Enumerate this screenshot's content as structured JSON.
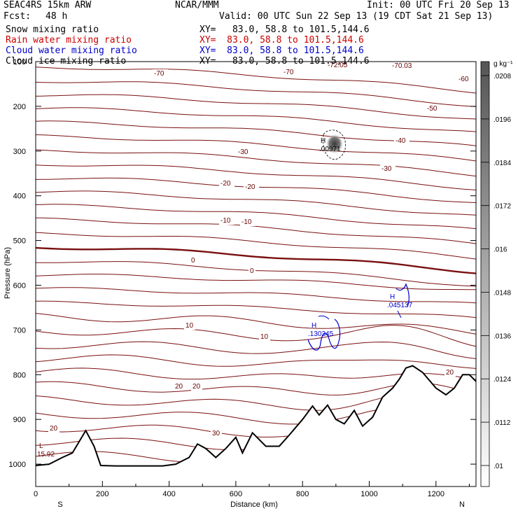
{
  "header": {
    "model": "SEAC4RS 15km ARW",
    "center": "NCAR/MMM",
    "init": "Init: 00 UTC Fri 20 Sep 13",
    "fcst_label": "Fcst:",
    "fcst_value": "48 h",
    "valid": "Valid: 00 UTC Sun 22 Sep 13 (19 CDT Sat 21 Sep 13)"
  },
  "fields": [
    {
      "name": "Snow mixing ratio",
      "xy": "XY=   83.0, 58.8 to 101.5,144.6",
      "color": "#000000"
    },
    {
      "name": "Rain water mixing ratio",
      "xy": "XY=  83.0, 58.8 to 101.5,144.6",
      "color": "#cc0000"
    },
    {
      "name": "Cloud water mixing ratio",
      "xy": "XY=  83.0, 58.8 to 101.5,144.6",
      "color": "#0000cc"
    },
    {
      "name": "Cloud ice mixing ratio",
      "xy": "XY=   83.0, 58.8 to 101.5,144.6",
      "color": "#000000"
    }
  ],
  "colorbar": {
    "units": "g kg⁻¹",
    "labels": [
      ".0208",
      ".0196",
      ".0184",
      ".0172",
      ".016",
      ".0148",
      ".0136",
      ".0124",
      ".0112",
      ".01"
    ]
  },
  "chart_data": {
    "type": "contour cross-section",
    "xlabel": "Distance (km)",
    "ylabel": "Pressure (hPa)",
    "x_ticks": [
      0,
      200,
      400,
      600,
      800,
      1000,
      1200
    ],
    "y_ticks": [
      200,
      300,
      400,
      500,
      600,
      700,
      800,
      900,
      1000
    ],
    "y_top_label": "100",
    "xlim": [
      0,
      1320
    ],
    "ylim": [
      1050,
      100
    ],
    "x_endpoints": {
      "left": "S",
      "right": "N"
    },
    "temperature_contour_labels": [
      "-70",
      "-70",
      "-72.05",
      "-70.03",
      "-60",
      "-50",
      "-40",
      "-30",
      "-30",
      "-20",
      "-20",
      "-10",
      "-10",
      "0",
      "0",
      "10",
      "10",
      "20",
      "20",
      "20",
      "20",
      "30"
    ],
    "extrema": [
      {
        "type": "H",
        "value": ".00971",
        "field": "Snow mixing ratio",
        "x_km": 900,
        "p_hPa": 300
      },
      {
        "type": "H",
        "value": ".130345",
        "field": "Cloud water mixing ratio",
        "x_km": 870,
        "p_hPa": 735
      },
      {
        "type": "H",
        "value": ".045137",
        "field": "Cloud water mixing ratio",
        "x_km": 1095,
        "p_hPa": 630
      },
      {
        "type": "L",
        "value": "15.92",
        "field": "temperature",
        "x_km": 25,
        "p_hPa": 1000
      }
    ],
    "terrain_surface": [
      {
        "x": 0,
        "p": 1003
      },
      {
        "x": 40,
        "p": 1000
      },
      {
        "x": 80,
        "p": 985
      },
      {
        "x": 110,
        "p": 975
      },
      {
        "x": 150,
        "p": 925
      },
      {
        "x": 175,
        "p": 960
      },
      {
        "x": 195,
        "p": 1003
      },
      {
        "x": 240,
        "p": 1004
      },
      {
        "x": 300,
        "p": 1004
      },
      {
        "x": 380,
        "p": 1004
      },
      {
        "x": 420,
        "p": 1000
      },
      {
        "x": 460,
        "p": 985
      },
      {
        "x": 485,
        "p": 955
      },
      {
        "x": 510,
        "p": 965
      },
      {
        "x": 540,
        "p": 985
      },
      {
        "x": 570,
        "p": 965
      },
      {
        "x": 600,
        "p": 940
      },
      {
        "x": 620,
        "p": 975
      },
      {
        "x": 650,
        "p": 930
      },
      {
        "x": 690,
        "p": 960
      },
      {
        "x": 730,
        "p": 960
      },
      {
        "x": 760,
        "p": 935
      },
      {
        "x": 800,
        "p": 900
      },
      {
        "x": 830,
        "p": 870
      },
      {
        "x": 850,
        "p": 890
      },
      {
        "x": 875,
        "p": 868
      },
      {
        "x": 900,
        "p": 900
      },
      {
        "x": 925,
        "p": 910
      },
      {
        "x": 955,
        "p": 880
      },
      {
        "x": 980,
        "p": 915
      },
      {
        "x": 1010,
        "p": 895
      },
      {
        "x": 1040,
        "p": 850
      },
      {
        "x": 1070,
        "p": 830
      },
      {
        "x": 1090,
        "p": 810
      },
      {
        "x": 1110,
        "p": 785
      },
      {
        "x": 1130,
        "p": 780
      },
      {
        "x": 1160,
        "p": 795
      },
      {
        "x": 1200,
        "p": 830
      },
      {
        "x": 1230,
        "p": 845
      },
      {
        "x": 1255,
        "p": 830
      },
      {
        "x": 1280,
        "p": 800
      },
      {
        "x": 1300,
        "p": 800
      },
      {
        "x": 1320,
        "p": 815
      }
    ]
  }
}
